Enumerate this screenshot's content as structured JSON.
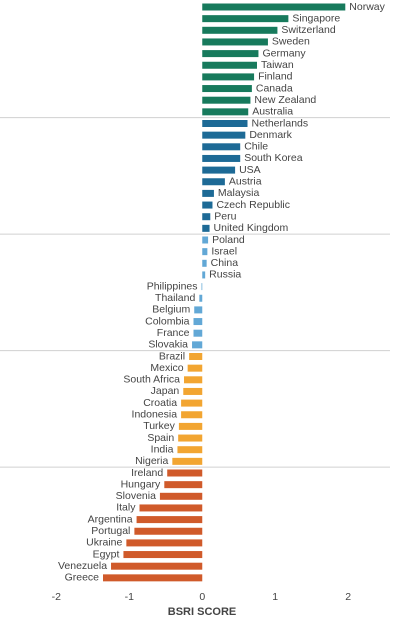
{
  "chart_data": {
    "type": "bar",
    "orientation": "horizontal",
    "x_label": "BSRI SCORE",
    "categories": [
      "Norway",
      "Singapore",
      "Switzerland",
      "Sweden",
      "Germany",
      "Taiwan",
      "Finland",
      "Canada",
      "New Zealand",
      "Australia",
      "Netherlands",
      "Denmark",
      "Chile",
      "South Korea",
      "USA",
      "Austria",
      "Malaysia",
      "Czech Republic",
      "Peru",
      "United Kingdom",
      "Poland",
      "Israel",
      "China",
      "Russia",
      "Philippines",
      "Thailand",
      "Belgium",
      "Colombia",
      "France",
      "Slovakia",
      "Brazil",
      "Mexico",
      "South Africa",
      "Japan",
      "Croatia",
      "Indonesia",
      "Turkey",
      "Spain",
      "India",
      "Nigeria",
      "Ireland",
      "Hungary",
      "Slovenia",
      "Italy",
      "Argentina",
      "Portugal",
      "Ukraine",
      "Egypt",
      "Venezuela",
      "Greece"
    ],
    "values": [
      1.96,
      1.18,
      1.03,
      0.9,
      0.77,
      0.75,
      0.71,
      0.68,
      0.66,
      0.63,
      0.62,
      0.59,
      0.52,
      0.52,
      0.45,
      0.31,
      0.16,
      0.14,
      0.11,
      0.1,
      0.08,
      0.07,
      0.06,
      0.04,
      -0.01,
      -0.04,
      -0.11,
      -0.12,
      -0.12,
      -0.14,
      -0.18,
      -0.2,
      -0.25,
      -0.26,
      -0.29,
      -0.29,
      -0.32,
      -0.33,
      -0.34,
      -0.41,
      -0.48,
      -0.52,
      -0.58,
      -0.86,
      -0.9,
      -0.93,
      -1.04,
      -1.08,
      -1.25,
      -1.36
    ],
    "colors": [
      "#177a5c",
      "#177a5c",
      "#177a5c",
      "#177a5c",
      "#177a5c",
      "#177a5c",
      "#177a5c",
      "#177a5c",
      "#177a5c",
      "#177a5c",
      "#1d6a96",
      "#1d6a96",
      "#1d6a96",
      "#1d6a96",
      "#1d6a96",
      "#1d6a96",
      "#1d6a96",
      "#1d6a96",
      "#1d6a96",
      "#1d6a96",
      "#62a8d6",
      "#62a8d6",
      "#62a8d6",
      "#62a8d6",
      "#62a8d6",
      "#62a8d6",
      "#62a8d6",
      "#62a8d6",
      "#62a8d6",
      "#62a8d6",
      "#f2a531",
      "#f2a531",
      "#f2a531",
      "#f2a531",
      "#f2a531",
      "#f2a531",
      "#f2a531",
      "#f2a531",
      "#f2a531",
      "#f2a531",
      "#d05a2a",
      "#d05a2a",
      "#d05a2a",
      "#d05a2a",
      "#d05a2a",
      "#d05a2a",
      "#d05a2a",
      "#d05a2a",
      "#d05a2a",
      "#d05a2a"
    ],
    "xlim": [
      -2.1,
      2.6
    ],
    "xticks": [
      -2,
      -1,
      0,
      1,
      2
    ]
  }
}
